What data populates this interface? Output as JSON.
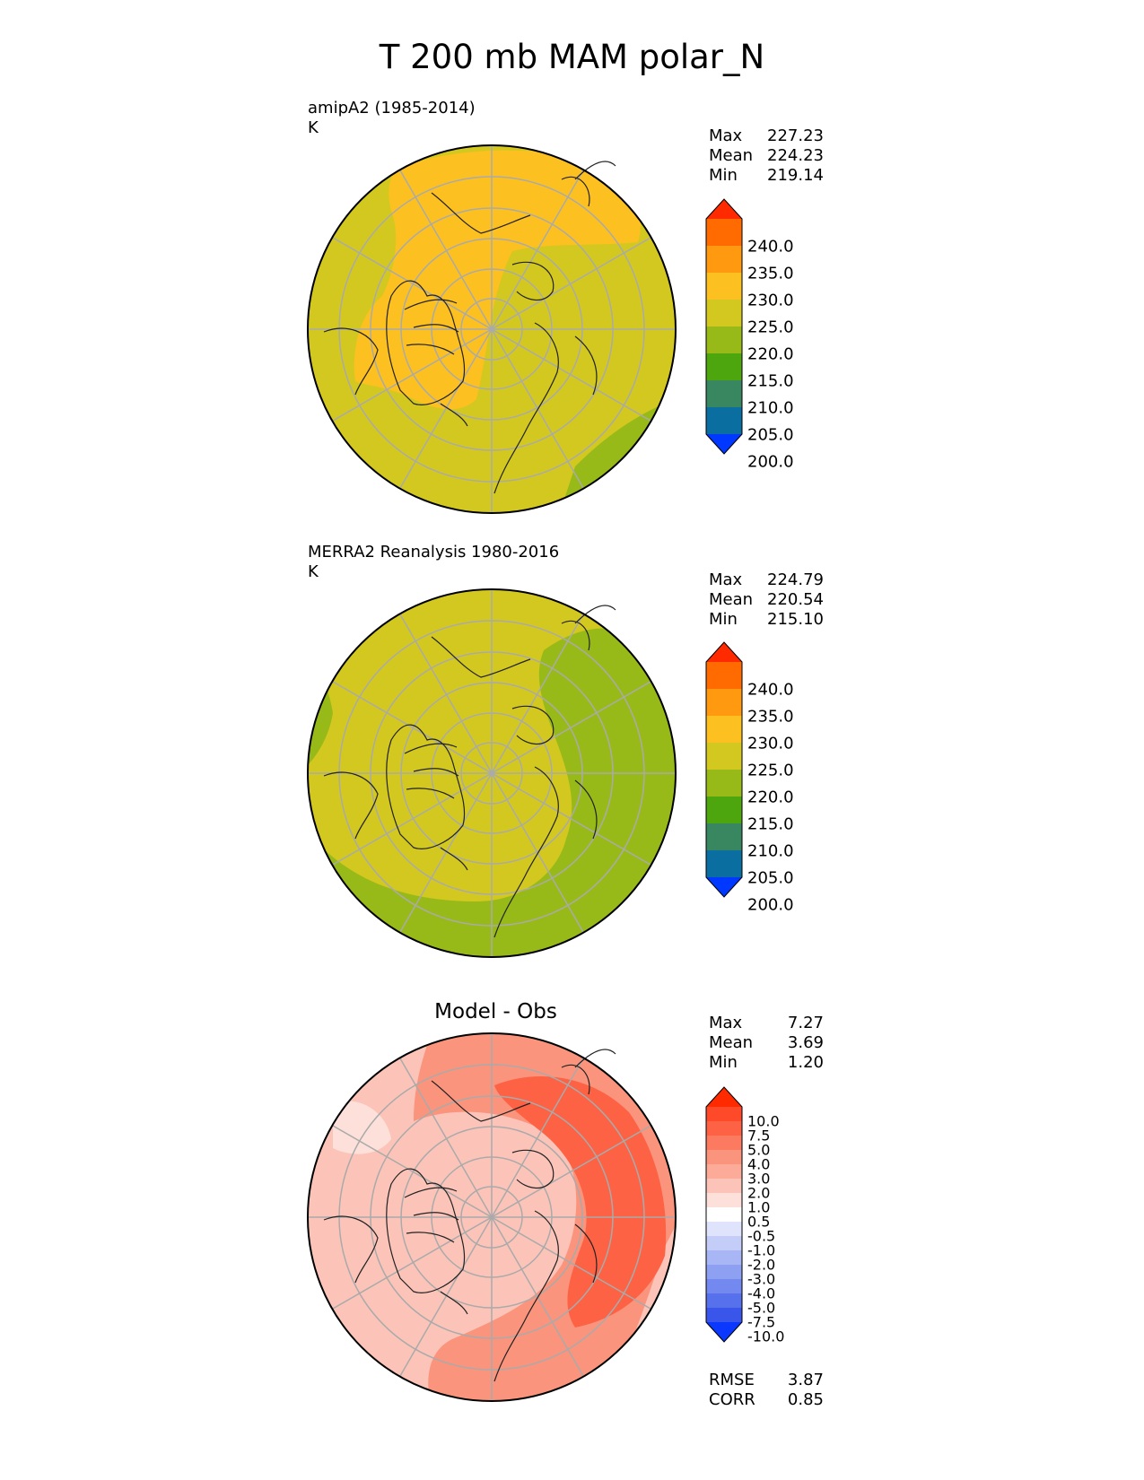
{
  "title": "T 200 mb MAM polar_N",
  "panels": [
    {
      "label_line1": "amipA2 (1985-2014)",
      "label_line2": "K",
      "stats": {
        "max_label": "Max",
        "max": "227.23",
        "mean_label": "Mean",
        "mean": "224.23",
        "min_label": "Min",
        "min": "219.14"
      },
      "colorbar": {
        "ticks": [
          "240.0",
          "235.0",
          "230.0",
          "225.0",
          "220.0",
          "215.0",
          "210.0",
          "205.0",
          "200.0"
        ],
        "colors": [
          "#ff2a00",
          "#ff6b00",
          "#ff9a10",
          "#fcc020",
          "#d3c81f",
          "#98ba19",
          "#4ea60f",
          "#398760",
          "#0a6ea0",
          "#0038ff"
        ]
      },
      "dominant_colors": [
        "#fcc020",
        "#d3c81f",
        "#98ba19"
      ]
    },
    {
      "label_line1": "MERRA2 Reanalysis 1980-2016",
      "label_line2": "K",
      "stats": {
        "max_label": "Max",
        "max": "224.79",
        "mean_label": "Mean",
        "mean": "220.54",
        "min_label": "Min",
        "min": "215.10"
      },
      "colorbar": {
        "ticks": [
          "240.0",
          "235.0",
          "230.0",
          "225.0",
          "220.0",
          "215.0",
          "210.0",
          "205.0",
          "200.0"
        ],
        "colors": [
          "#ff2a00",
          "#ff6b00",
          "#ff9a10",
          "#fcc020",
          "#d3c81f",
          "#98ba19",
          "#4ea60f",
          "#398760",
          "#0a6ea0",
          "#0038ff"
        ]
      },
      "dominant_colors": [
        "#d3c81f",
        "#98ba19"
      ]
    },
    {
      "title": "Model - Obs",
      "stats": {
        "max_label": "Max",
        "max": "7.27",
        "mean_label": "Mean",
        "mean": "3.69",
        "min_label": "Min",
        "min": "1.20"
      },
      "colorbar": {
        "ticks": [
          "10.0",
          "7.5",
          "5.0",
          "4.0",
          "3.0",
          "2.0",
          "1.0",
          "0.5",
          "-0.5",
          "-1.0",
          "-2.0",
          "-3.0",
          "-4.0",
          "-5.0",
          "-7.5",
          "-10.0"
        ],
        "colors": [
          "#ff2a00",
          "#ff4a2a",
          "#fd6245",
          "#fc7a60",
          "#fb947d",
          "#fbab98",
          "#fcc4b8",
          "#fde0da",
          "#ffffff",
          "#dfe3fb",
          "#c4cdf8",
          "#a9b6f5",
          "#8ea0f2",
          "#7389ef",
          "#5770ec",
          "#3a55ea",
          "#0a38ff"
        ]
      },
      "rmse_label": "RMSE",
      "rmse": "3.87",
      "corr_label": "CORR",
      "corr": "0.85",
      "dominant_colors": [
        "#fcc4b8",
        "#fb947d",
        "#fd6245"
      ]
    }
  ]
}
